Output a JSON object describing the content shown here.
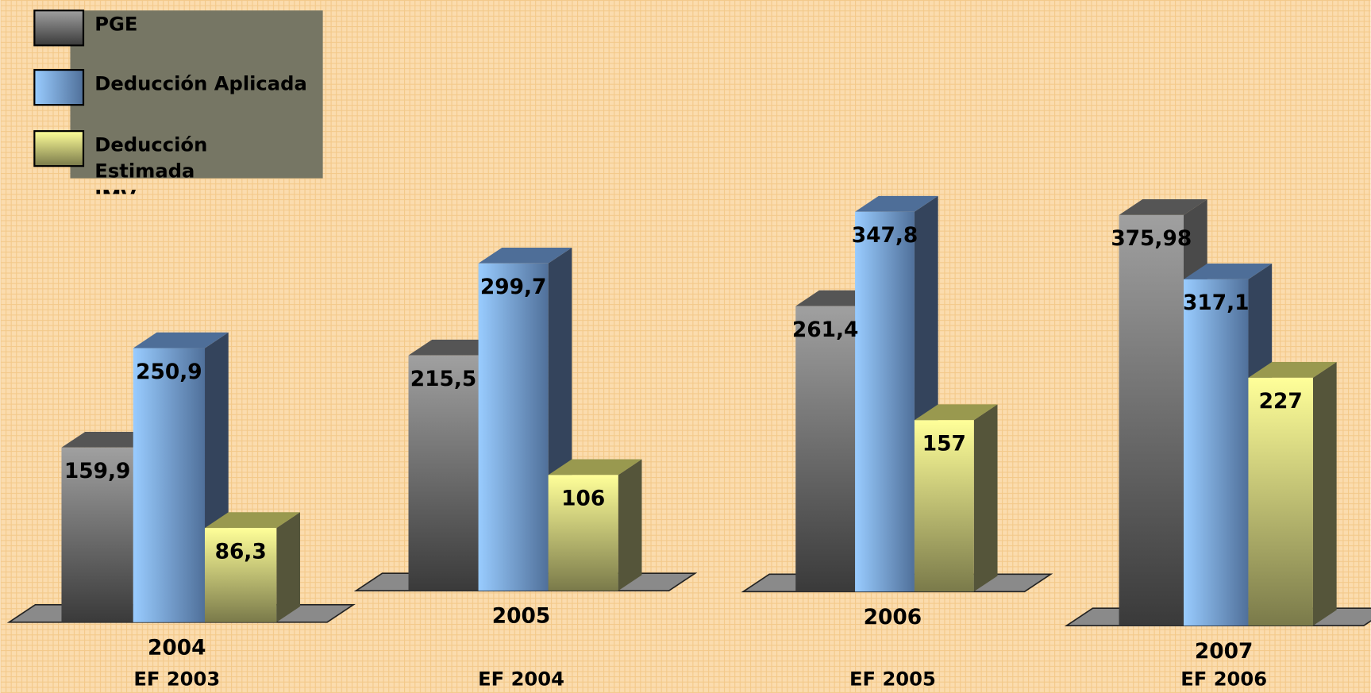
{
  "chart_data": {
    "type": "bar3d",
    "categories": [
      "2004",
      "2005",
      "2006",
      "2007"
    ],
    "sublabels": [
      "EF 2003",
      "EF 2004",
      "EF 2005",
      "EF 2006"
    ],
    "series": [
      {
        "name": "PGE",
        "color": "#a0a0a0",
        "values": [
          159.9,
          215.5,
          261.4,
          375.98
        ],
        "value_labels": [
          "159,9",
          "215,5",
          "261,4",
          "375,98"
        ]
      },
      {
        "name": "Deducción Aplicada",
        "color": "#99ccff",
        "values": [
          250.9,
          299.7,
          347.8,
          317.1
        ],
        "value_labels": [
          "250,9",
          "299,7",
          "347,8",
          "317,1"
        ]
      },
      {
        "name": "Deducción Estimada IMV",
        "color": "#ffff99",
        "values": [
          86.3,
          106,
          157,
          227
        ],
        "value_labels": [
          "86,3",
          "106",
          "157",
          "227"
        ]
      }
    ]
  }
}
